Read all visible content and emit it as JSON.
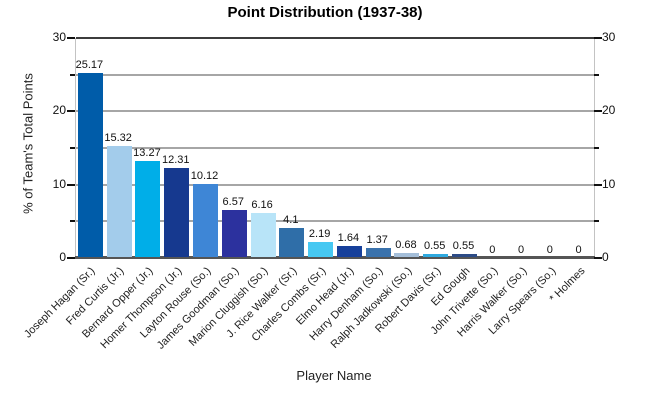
{
  "title": "Point Distribution (1937-38)",
  "axes": {
    "xlabel": "Player Name",
    "ylabel": "% of Team's Total Points"
  },
  "colors": {
    "grid_major": "#a6a6a6",
    "grid_top": "#3c3c3c",
    "axis_line": "#555555",
    "plot_border": "#c3c3c3",
    "text": "#111111"
  },
  "chart_data": {
    "type": "bar",
    "title": "Point Distribution (1937-38)",
    "xlabel": "Player Name",
    "ylabel": "% of Team's Total Points",
    "ylim": [
      0,
      30
    ],
    "yticks_labeled": [
      0,
      10,
      20,
      30
    ],
    "yticks_minor": [
      5,
      15,
      25
    ],
    "grid": true,
    "legend_position": "none",
    "categories": [
      "Joseph Hagan (Sr.)",
      "Fred Curtis (Jr.)",
      "Bernard Opper (Jr.)",
      "Homer Thompson (Jr.)",
      "Layton Rouse (So.)",
      "James Goodman (So.)",
      "Marion Cluggish (So.)",
      "J. Rice Walker (Sr.)",
      "Charles Combs (Sr.)",
      "Elmo Head (Jr.)",
      "Harry Denham (So.)",
      "Ralph Jadkowski (So.)",
      "Robert Davis (Sr.)",
      "Ed Gough",
      "John Trivette (So.)",
      "Harris Walker (So.)",
      "Larry Spears (So.)",
      "* Holmes"
    ],
    "values": [
      25.17,
      15.32,
      13.27,
      12.31,
      10.12,
      6.57,
      6.16,
      4.1,
      2.19,
      1.64,
      1.37,
      0.68,
      0.55,
      0.55,
      0,
      0,
      0,
      0
    ],
    "value_labels": [
      "25.17",
      "15.32",
      "13.27",
      "12.31",
      "10.12",
      "6.57",
      "6.16",
      "4.1",
      "2.19",
      "1.64",
      "1.37",
      "0.68",
      "0.55",
      "0.55",
      "0",
      "0",
      "0",
      "0"
    ],
    "bar_colors": [
      "#005CA9",
      "#A3CCEB",
      "#00AEE8",
      "#16398F",
      "#3E86D6",
      "#2C319E",
      "#B8E4F8",
      "#2F6EA8",
      "#46C8F2",
      "#17409B",
      "#3A72AC",
      "#A4BED9",
      "#2EA9DF",
      "#2C4B86",
      "#888888",
      "#888888",
      "#888888",
      "#888888"
    ]
  }
}
